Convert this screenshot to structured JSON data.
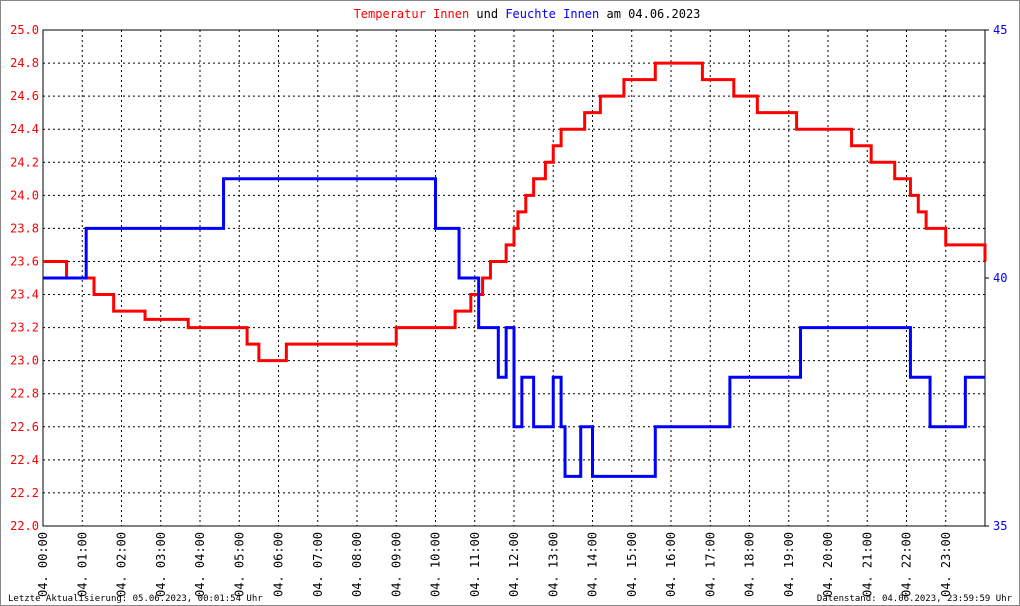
{
  "chart_data": {
    "type": "step-line",
    "title_connector": "und",
    "title_date": "am 04.06.2023",
    "footer_left": "Letzte Aktualisierung: 05.06.2023, 00:01:54 Uhr",
    "footer_right": "Datenstand: 04.06.2023, 23:59:59 Uhr",
    "xlim": [
      0,
      24
    ],
    "xticks": [
      {
        "value": 0,
        "label": "04. 00:00"
      },
      {
        "value": 1,
        "label": "04. 01:00"
      },
      {
        "value": 2,
        "label": "04. 02:00"
      },
      {
        "value": 3,
        "label": "04. 03:00"
      },
      {
        "value": 4,
        "label": "04. 04:00"
      },
      {
        "value": 5,
        "label": "04. 05:00"
      },
      {
        "value": 6,
        "label": "04. 06:00"
      },
      {
        "value": 7,
        "label": "04. 07:00"
      },
      {
        "value": 8,
        "label": "04. 08:00"
      },
      {
        "value": 9,
        "label": "04. 09:00"
      },
      {
        "value": 10,
        "label": "04. 10:00"
      },
      {
        "value": 11,
        "label": "04. 11:00"
      },
      {
        "value": 12,
        "label": "04. 12:00"
      },
      {
        "value": 13,
        "label": "04. 13:00"
      },
      {
        "value": 14,
        "label": "04. 14:00"
      },
      {
        "value": 15,
        "label": "04. 15:00"
      },
      {
        "value": 16,
        "label": "04. 16:00"
      },
      {
        "value": 17,
        "label": "04. 17:00"
      },
      {
        "value": 18,
        "label": "04. 18:00"
      },
      {
        "value": 19,
        "label": "04. 19:00"
      },
      {
        "value": 20,
        "label": "04. 20:00"
      },
      {
        "value": 21,
        "label": "04. 21:00"
      },
      {
        "value": 22,
        "label": "04. 22:00"
      },
      {
        "value": 23,
        "label": "04. 23:00"
      }
    ],
    "ylim": [
      22.0,
      25.0
    ],
    "yticks": [
      {
        "value": 22.0,
        "label": "22.0"
      },
      {
        "value": 22.2,
        "label": "22.2"
      },
      {
        "value": 22.4,
        "label": "22.4"
      },
      {
        "value": 22.6,
        "label": "22.6"
      },
      {
        "value": 22.8,
        "label": "22.8"
      },
      {
        "value": 23.0,
        "label": "23.0"
      },
      {
        "value": 23.2,
        "label": "23.2"
      },
      {
        "value": 23.4,
        "label": "23.4"
      },
      {
        "value": 23.6,
        "label": "23.6"
      },
      {
        "value": 23.8,
        "label": "23.8"
      },
      {
        "value": 24.0,
        "label": "24.0"
      },
      {
        "value": 24.2,
        "label": "24.2"
      },
      {
        "value": 24.4,
        "label": "24.4"
      },
      {
        "value": 24.6,
        "label": "24.6"
      },
      {
        "value": 24.8,
        "label": "24.8"
      },
      {
        "value": 25.0,
        "label": "25.0"
      }
    ],
    "y2lim": [
      35,
      45
    ],
    "y2ticks": [
      35,
      40,
      45
    ],
    "grid": true,
    "series": [
      {
        "name": "Temperatur Innen",
        "color": "#ff0000",
        "x": [
          0,
          0.6,
          1.3,
          1.8,
          2.6,
          3.7,
          5.2,
          5.5,
          6.2,
          9.0,
          10.5,
          10.9,
          11.2,
          11.4,
          11.8,
          12.0,
          12.1,
          12.3,
          12.5,
          12.8,
          13.0,
          13.2,
          13.8,
          14.2,
          14.8,
          15.6,
          16.8,
          17.6,
          18.2,
          19.2,
          20.6,
          21.1,
          21.7,
          22.1,
          22.3,
          22.5,
          23.0,
          24
        ],
        "values": [
          23.6,
          23.5,
          23.4,
          23.3,
          23.25,
          23.2,
          23.1,
          23.0,
          23.1,
          23.2,
          23.3,
          23.4,
          23.5,
          23.6,
          23.7,
          23.8,
          23.9,
          24.0,
          24.1,
          24.2,
          24.3,
          24.4,
          24.5,
          24.6,
          24.7,
          24.8,
          24.7,
          24.6,
          24.5,
          24.4,
          24.3,
          24.2,
          24.1,
          24.0,
          23.9,
          23.8,
          23.7,
          23.6
        ]
      },
      {
        "name": "Feuchte Innen",
        "color": "#0000ff",
        "axis": "y2",
        "x": [
          0,
          1.1,
          4.6,
          10.0,
          10.6,
          11.1,
          11.6,
          11.8,
          12.0,
          12.2,
          12.5,
          13.0,
          13.2,
          13.3,
          13.7,
          14.0,
          15.6,
          17.5,
          19.3,
          22.1,
          22.6,
          23.5,
          24
        ],
        "values": [
          40,
          41,
          42,
          41,
          40,
          39,
          38,
          39,
          37,
          38,
          37,
          38,
          37,
          36,
          37,
          36,
          37,
          38,
          39,
          38,
          37,
          38,
          38
        ]
      }
    ]
  }
}
